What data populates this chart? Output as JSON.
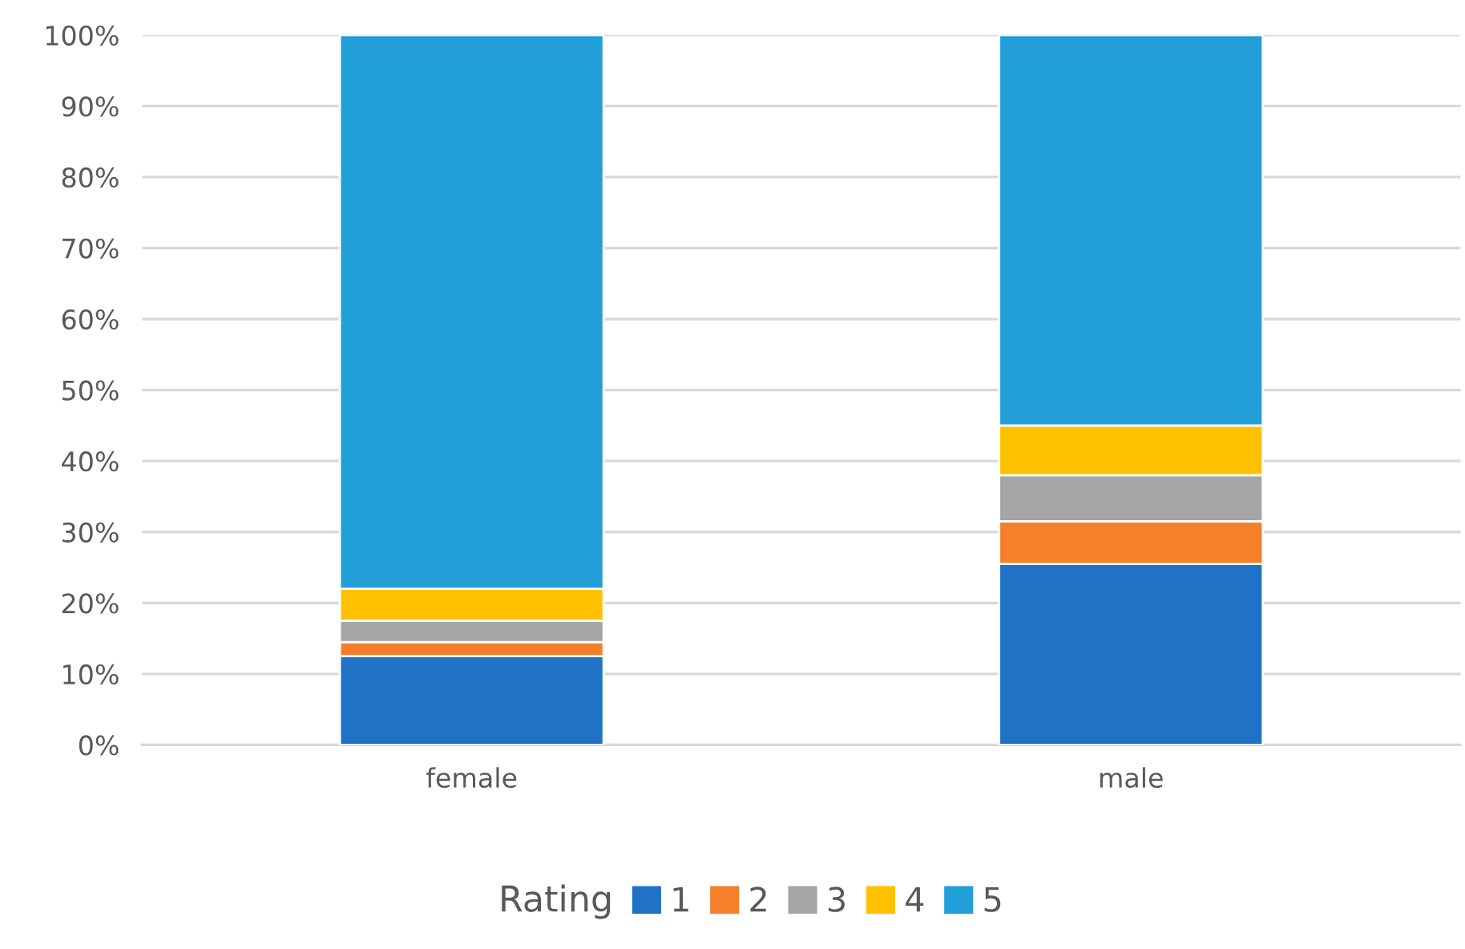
{
  "chart_data": {
    "type": "bar",
    "stacked": true,
    "categories": [
      "female",
      "male"
    ],
    "series": [
      {
        "name": "1",
        "color": "#1f72c6",
        "values": [
          12.5,
          25.5
        ]
      },
      {
        "name": "2",
        "color": "#f57f2a",
        "values": [
          2,
          6
        ]
      },
      {
        "name": "3",
        "color": "#a5a5a5",
        "values": [
          3,
          6.5
        ]
      },
      {
        "name": "4",
        "color": "#ffc000",
        "values": [
          4.5,
          7
        ]
      },
      {
        "name": "5",
        "color": "#229ed9",
        "values": [
          78,
          55
        ]
      }
    ],
    "ylim": [
      0,
      100
    ],
    "yticks": [
      {
        "value": 0,
        "label": "0%"
      },
      {
        "value": 10,
        "label": "10%"
      },
      {
        "value": 20,
        "label": "20%"
      },
      {
        "value": 30,
        "label": "30%"
      },
      {
        "value": 40,
        "label": "40%"
      },
      {
        "value": 50,
        "label": "50%"
      },
      {
        "value": 60,
        "label": "60%"
      },
      {
        "value": 70,
        "label": "70%"
      },
      {
        "value": 80,
        "label": "80%"
      },
      {
        "value": 90,
        "label": "90%"
      },
      {
        "value": 100,
        "label": "100%"
      }
    ],
    "grid": "y",
    "legend": "bottom",
    "legend_title": "Rating"
  }
}
